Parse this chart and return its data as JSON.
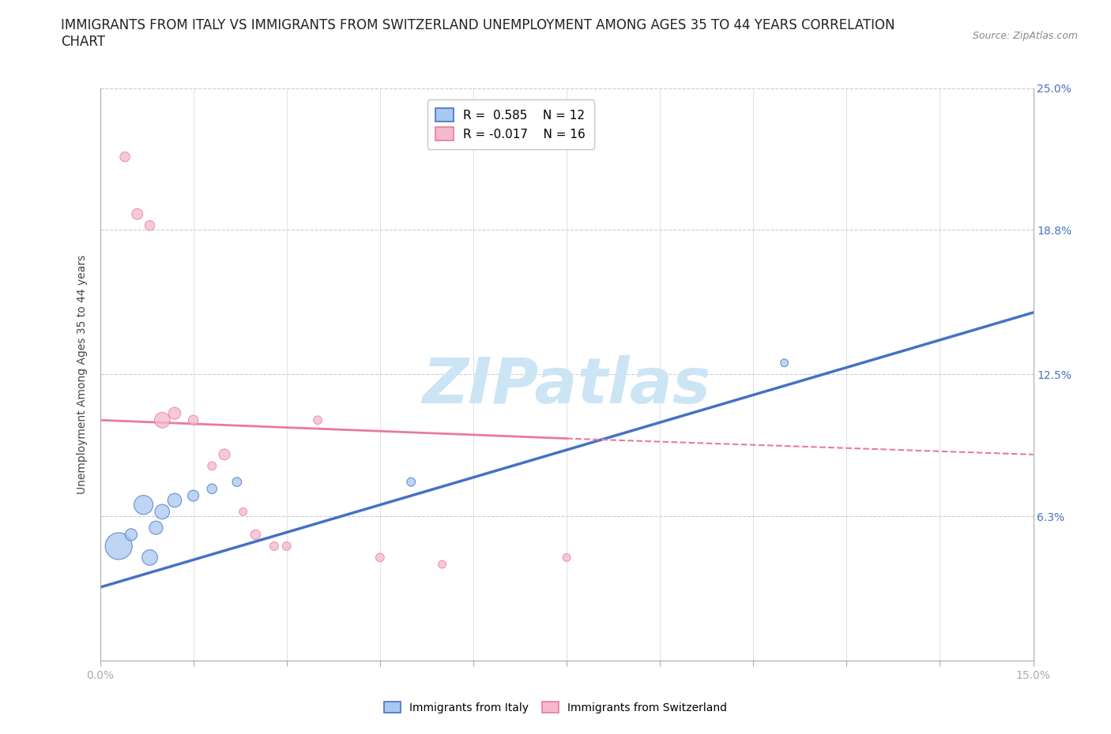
{
  "title_line1": "IMMIGRANTS FROM ITALY VS IMMIGRANTS FROM SWITZERLAND UNEMPLOYMENT AMONG AGES 35 TO 44 YEARS CORRELATION",
  "title_line2": "CHART",
  "source_text": "Source: ZipAtlas.com",
  "ylabel": "Unemployment Among Ages 35 to 44 years",
  "xlim": [
    0.0,
    15.0
  ],
  "ylim": [
    0.0,
    25.0
  ],
  "xticks": [
    0.0,
    1.5,
    3.0,
    4.5,
    6.0,
    7.5,
    9.0,
    10.5,
    12.0,
    13.5,
    15.0
  ],
  "yticks": [
    0.0,
    6.3,
    12.5,
    18.8,
    25.0
  ],
  "xticklabels": [
    "0.0%",
    "",
    "",
    "",
    "",
    "",
    "",
    "",
    "",
    "",
    "15.0%"
  ],
  "yticklabels_right": [
    "",
    "6.3%",
    "12.5%",
    "18.8%",
    "25.0%"
  ],
  "italy_r": "0.585",
  "italy_n": "12",
  "switzerland_r": "-0.017",
  "switzerland_n": "16",
  "italy_color": "#a8c8f0",
  "switzerland_color": "#f5b8cc",
  "italy_line_color": "#4472c4",
  "switzerland_line_color": "#e87b9a",
  "watermark": "ZIPatlas",
  "watermark_color": "#cce5f5",
  "italy_scatter_x": [
    0.3,
    0.5,
    0.7,
    0.8,
    0.9,
    1.0,
    1.2,
    1.5,
    1.8,
    2.2,
    5.0,
    11.0
  ],
  "italy_scatter_y": [
    5.0,
    5.5,
    6.8,
    4.5,
    5.8,
    6.5,
    7.0,
    7.2,
    7.5,
    7.8,
    7.8,
    13.0
  ],
  "italy_scatter_size": [
    600,
    120,
    300,
    200,
    150,
    180,
    160,
    100,
    80,
    70,
    60,
    50
  ],
  "switzerland_scatter_x": [
    0.4,
    0.6,
    0.8,
    1.0,
    1.2,
    1.5,
    2.0,
    2.5,
    2.8,
    3.5,
    1.8,
    3.0,
    4.5,
    5.5,
    7.5,
    2.3
  ],
  "switzerland_scatter_y": [
    22.0,
    19.5,
    19.0,
    10.5,
    10.8,
    10.5,
    9.0,
    5.5,
    5.0,
    10.5,
    8.5,
    5.0,
    4.5,
    4.2,
    4.5,
    6.5
  ],
  "switzerland_scatter_size": [
    80,
    100,
    80,
    200,
    120,
    80,
    100,
    80,
    60,
    60,
    60,
    60,
    60,
    50,
    50,
    50
  ],
  "italy_reg_x0": 0.0,
  "italy_reg_y0": 3.2,
  "italy_reg_x1": 15.0,
  "italy_reg_y1": 15.2,
  "switzerland_solid_x0": 0.0,
  "switzerland_solid_y0": 10.5,
  "switzerland_solid_x1": 7.5,
  "switzerland_solid_y1": 9.7,
  "switzerland_dash_x0": 7.5,
  "switzerland_dash_y0": 9.7,
  "switzerland_dash_x1": 15.0,
  "switzerland_dash_y1": 9.0,
  "background_color": "#ffffff",
  "grid_color": "#cccccc",
  "right_tick_color": "#4472c4",
  "title_fontsize": 12,
  "axis_label_fontsize": 10,
  "tick_fontsize": 10,
  "legend_fontsize": 11
}
